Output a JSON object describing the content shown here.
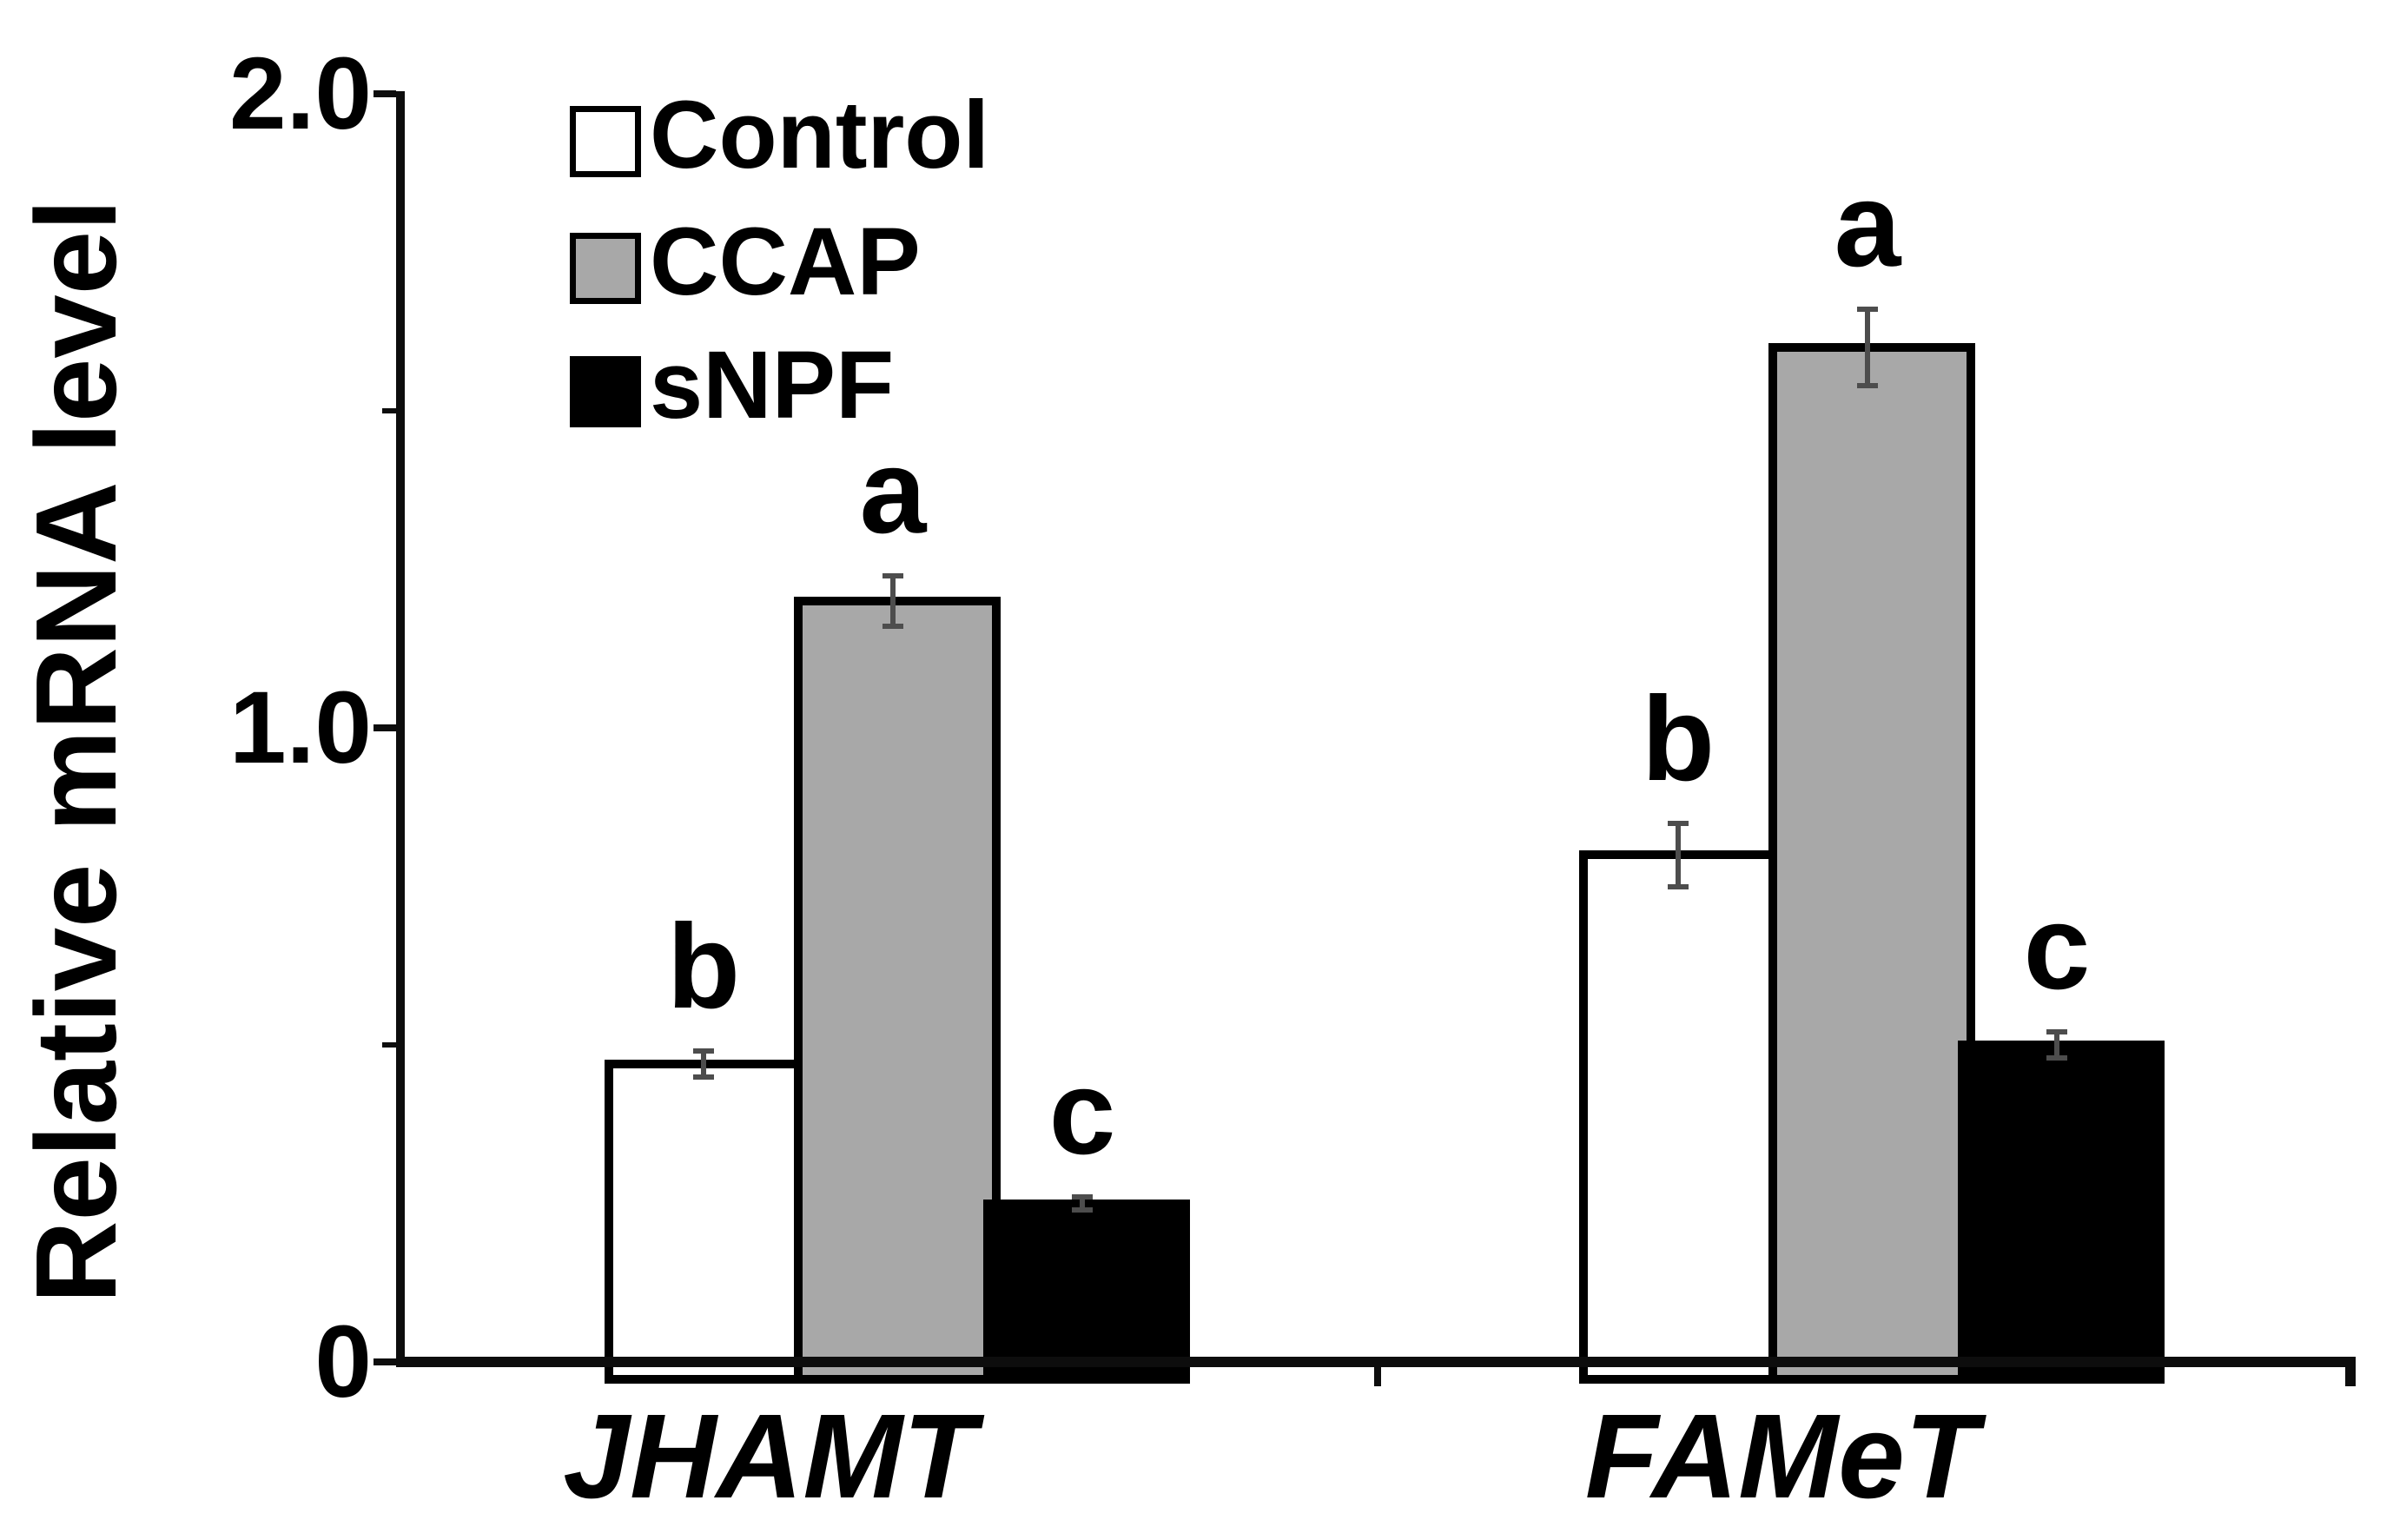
{
  "figure": {
    "y_axis_title": "Relative mRNA level",
    "legend": [
      {
        "label": "Control",
        "fill": "#ffffff"
      },
      {
        "label": "CCAP",
        "fill": "#a8a8a8"
      },
      {
        "label": "sNPF",
        "fill": "#000000"
      }
    ]
  },
  "chart_data": {
    "type": "bar",
    "title": "",
    "xlabel": "",
    "ylabel": "Relative mRNA level",
    "ylim": [
      0,
      2.0
    ],
    "y_major_ticks": [
      0,
      1.0,
      2.0
    ],
    "y_major_tick_labels": [
      "0",
      "1.0",
      "2.0"
    ],
    "y_minor_ticks": [
      0.5,
      1.5
    ],
    "grid": false,
    "legend_position": "upper-left",
    "categories": [
      "JHAMT",
      "FAMeT"
    ],
    "series": [
      {
        "name": "Control",
        "fill": "#ffffff",
        "values": [
          0.47,
          0.8
        ],
        "errors": [
          0.02,
          0.05
        ],
        "sig_letters": [
          "b",
          "b"
        ]
      },
      {
        "name": "CCAP",
        "fill": "#a8a8a8",
        "values": [
          1.2,
          1.6
        ],
        "errors": [
          0.04,
          0.06
        ],
        "sig_letters": [
          "a",
          "a"
        ]
      },
      {
        "name": "sNPF",
        "fill": "#000000",
        "values": [
          0.25,
          0.5
        ],
        "errors": [
          0.01,
          0.02
        ],
        "sig_letters": [
          "c",
          "c"
        ]
      }
    ],
    "error_bar_color": "#4d4d4d",
    "axis_color": "#0d0d0d"
  }
}
